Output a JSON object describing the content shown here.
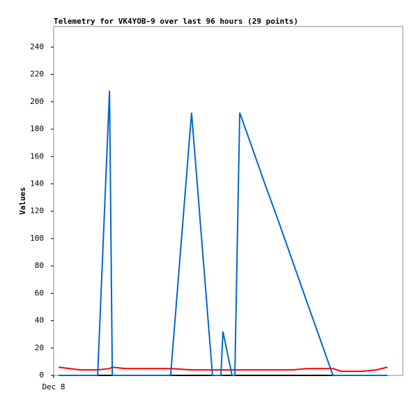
{
  "chart_data": {
    "type": "line",
    "title": "Telemetry for VK4YOB-9 over last 96 hours (29 points)",
    "y_label": "Values",
    "x": [
      1.4,
      4.6,
      7.6,
      12.6,
      16.0,
      16.8,
      20.6,
      24.6,
      28.5,
      33.5,
      39.5,
      45.5,
      47.9,
      48.5,
      51.1,
      51.9,
      53.3,
      56.5,
      60.5,
      64.5,
      68.5,
      72.5,
      76.4,
      80.0,
      82.4,
      85.4,
      88.4,
      92.4,
      95.6
    ],
    "series": [
      {
        "color": "#000000",
        "values": [
          0,
          0,
          0,
          0,
          0,
          0,
          0,
          0,
          0,
          0,
          0,
          0,
          0,
          0,
          0,
          0,
          0,
          0,
          0,
          0,
          0,
          0,
          0,
          0,
          0,
          0,
          0,
          0,
          0
        ]
      },
      {
        "color": "#ff0000",
        "values": [
          6,
          5,
          4,
          4,
          5,
          6,
          5,
          5,
          5,
          5,
          4,
          4,
          4,
          4,
          4,
          4,
          4,
          4,
          4,
          4,
          4,
          5,
          5,
          5,
          3,
          3,
          3,
          4,
          6
        ]
      },
      {
        "color": "#0066cc",
        "values": [
          0,
          0,
          0,
          0,
          208,
          0,
          0,
          0,
          0,
          0,
          192,
          0,
          0,
          32,
          0,
          0,
          192,
          169,
          140,
          112,
          83,
          54,
          26,
          0,
          0,
          0,
          0,
          0,
          0
        ]
      }
    ],
    "xlim": [
      0,
      100
    ],
    "xticks": [
      {
        "value": 0,
        "label": "Dec 8"
      }
    ],
    "ylim": [
      0,
      255
    ],
    "yticks": [
      0,
      20,
      40,
      60,
      80,
      100,
      120,
      140,
      160,
      180,
      200,
      220,
      240
    ]
  }
}
